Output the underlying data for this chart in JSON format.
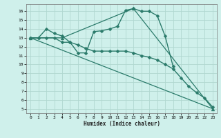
{
  "xlabel": "Humidex (Indice chaleur)",
  "bg_color": "#cff0eb",
  "grid_color": "#b0d8d0",
  "line_color": "#2a7a6a",
  "xlim": [
    -0.5,
    23.5
  ],
  "ylim": [
    4.5,
    16.8
  ],
  "yticks": [
    5,
    6,
    7,
    8,
    9,
    10,
    11,
    12,
    13,
    14,
    15,
    16
  ],
  "xticks": [
    0,
    1,
    2,
    3,
    4,
    5,
    6,
    7,
    8,
    9,
    10,
    11,
    12,
    13,
    14,
    15,
    16,
    17,
    18,
    19,
    20,
    21,
    22,
    23
  ],
  "series": [
    {
      "x": [
        0,
        1,
        2,
        3,
        4,
        5,
        6,
        7,
        8,
        9,
        10,
        11,
        12,
        13,
        14,
        15,
        16,
        17,
        18
      ],
      "y": [
        13.0,
        13.0,
        14.0,
        13.5,
        13.2,
        12.5,
        11.3,
        11.3,
        13.7,
        13.8,
        14.0,
        14.3,
        16.1,
        16.3,
        16.0,
        16.0,
        15.5,
        13.2,
        9.8
      ],
      "marker": "D",
      "marker_size": 2.5,
      "lw": 1.0
    },
    {
      "x": [
        0,
        1,
        2,
        3,
        4,
        5,
        6,
        7,
        8,
        9,
        10,
        11,
        12,
        13,
        14,
        15,
        16,
        17,
        18,
        19,
        20,
        21,
        22,
        23
      ],
      "y": [
        13.0,
        13.0,
        13.0,
        13.0,
        12.5,
        12.5,
        12.2,
        11.8,
        11.5,
        11.5,
        11.5,
        11.5,
        11.5,
        11.3,
        11.0,
        10.8,
        10.5,
        10.0,
        9.5,
        8.5,
        7.5,
        6.8,
        6.2,
        5.2
      ],
      "marker": "D",
      "marker_size": 2.5,
      "lw": 1.0
    },
    {
      "x": [
        0,
        23
      ],
      "y": [
        13.0,
        5.0
      ],
      "marker": null,
      "marker_size": 0,
      "lw": 0.9
    },
    {
      "comment": "triangle marker line: (0,13) -> (4,13) -> (13,16.3) -> (23,5)",
      "x": [
        0,
        4,
        13,
        23
      ],
      "y": [
        13.0,
        13.0,
        16.3,
        5.0
      ],
      "marker": "^",
      "marker_size": 3.5,
      "lw": 0.9
    }
  ]
}
